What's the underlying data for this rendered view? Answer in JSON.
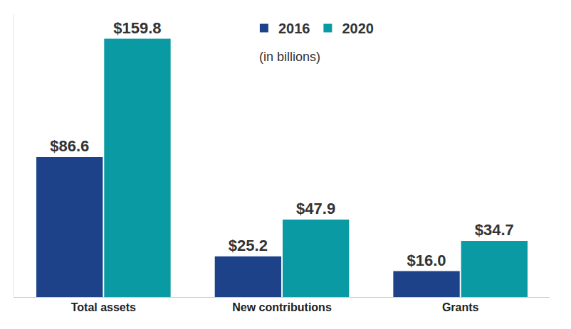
{
  "chart_data": {
    "type": "bar",
    "subtitle": "(in billions)",
    "categories": [
      "Total assets",
      "New contributions",
      "Grants"
    ],
    "series": [
      {
        "name": "2016",
        "color": "#1d4289",
        "values": [
          86.6,
          25.2,
          16.0
        ],
        "value_labels": [
          "$86.6",
          "$25.2",
          "$16.0"
        ]
      },
      {
        "name": "2020",
        "color": "#0a9aa3",
        "values": [
          159.8,
          47.9,
          34.7
        ],
        "value_labels": [
          "$159.8",
          "$47.9",
          "$34.7"
        ]
      }
    ],
    "ylim": [
      0,
      175
    ],
    "yticks": [],
    "grid": false,
    "legend": "top",
    "data_labels": true,
    "tick_labels": "x"
  }
}
